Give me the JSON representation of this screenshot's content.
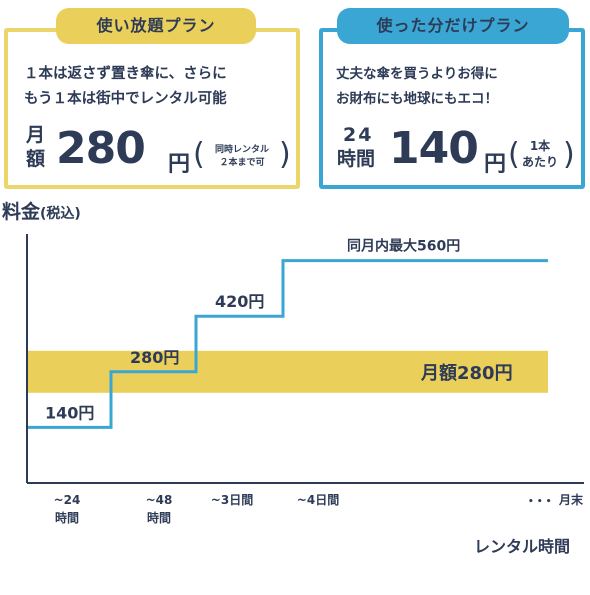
{
  "plans": {
    "unlimited": {
      "title": "使い放題プラン",
      "desc_line1": "１本は返さず置き傘に、さらに",
      "desc_line2": "もう１本は街中でレンタル可能",
      "unit_1": "月",
      "unit_2": "額",
      "price": "280",
      "yen": "円",
      "note_line1": "同時レンタル",
      "note_line2": "２本まで可",
      "paren_open": "(",
      "paren_close": ")"
    },
    "pay_per_use": {
      "title": "使った分だけプラン",
      "desc_line1": "丈夫な傘を買うよりお得に",
      "desc_line2": "お財布にも地球にもエコ！",
      "unit_1": "24",
      "unit_2": "時間",
      "price": "140",
      "yen": "円",
      "note_line1": "1本",
      "note_line2": "あたり",
      "paren_open": "(",
      "paren_close": ")"
    }
  },
  "chart_data": {
    "type": "line",
    "ylabel": "料金",
    "ylabel_sub": "(税込)",
    "xlabel": "レンタル時間",
    "categories": [
      "~24時間",
      "~48時間",
      "~3日間",
      "~4日間",
      "月末"
    ],
    "x_tick_labels": [
      {
        "line1": "~24",
        "line2": "時間"
      },
      {
        "line1": "~48",
        "line2": "時間"
      },
      {
        "line1": "~3日間",
        "line2": ""
      },
      {
        "line1": "~4日間",
        "line2": ""
      },
      {
        "line1": "月末",
        "line2": ""
      }
    ],
    "ellipsis": "• • •",
    "series": [
      {
        "values": [
          140,
          280,
          420,
          560,
          560
        ],
        "color": "#3aa6d3"
      }
    ],
    "value_labels": [
      {
        "value": 140,
        "text": "140円"
      },
      {
        "value": 280,
        "text": "280円"
      },
      {
        "value": 420,
        "text": "420円"
      }
    ],
    "max_label": "同月内最大560円",
    "flat_band": {
      "value": 280,
      "label": "月額280円",
      "color": "#ead05a"
    },
    "ylim": [
      0,
      700
    ],
    "axis_color": "#2e3b57"
  }
}
